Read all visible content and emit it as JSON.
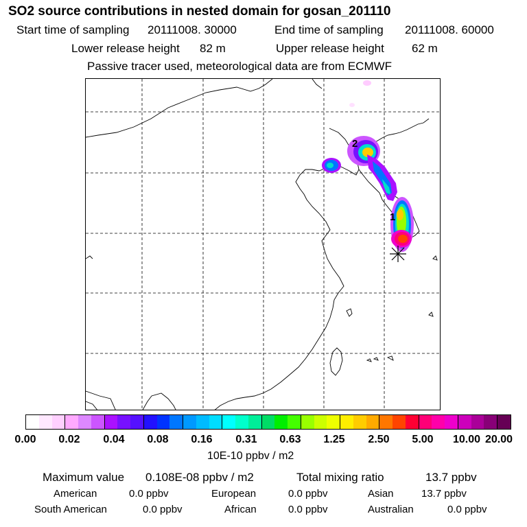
{
  "title": "SO2 source contributions in nested domain for gosan_201110",
  "header": {
    "start_label": "Start time of sampling",
    "start_value": "20111008. 30000",
    "end_label": "End time of sampling",
    "end_value": "20111008. 60000",
    "lower_label": "Lower release height",
    "lower_value": "82 m",
    "upper_label": "Upper release height",
    "upper_value": "62 m",
    "note": "Passive tracer used, meteorological data are from ECMWF"
  },
  "map": {
    "source_labels": [
      "1",
      "2"
    ],
    "receptor": "gosan-marker"
  },
  "colorbar": {
    "colors": [
      "#ffffff",
      "#ffe8ff",
      "#ffd0ff",
      "#ffaaff",
      "#dd88ff",
      "#cc55ff",
      "#aa11ff",
      "#7711ff",
      "#5511ff",
      "#2211ff",
      "#0033ff",
      "#0077ff",
      "#0099ff",
      "#00bbff",
      "#00ddff",
      "#00ffff",
      "#00ffcc",
      "#00ee99",
      "#00dd66",
      "#00ee00",
      "#44ff00",
      "#99ff00",
      "#ccff00",
      "#eeff00",
      "#ffee00",
      "#ffcc00",
      "#ffaa00",
      "#ff7700",
      "#ff4400",
      "#ff0033",
      "#ff0077",
      "#ff00aa",
      "#ee00cc",
      "#cc00bb",
      "#aa0099",
      "#880077",
      "#660055"
    ],
    "ticks": [
      "0.00",
      "0.02",
      "0.04",
      "0.08",
      "0.16",
      "0.31",
      "0.63",
      "1.25",
      "2.50",
      "5.00",
      "10.00",
      "20.00"
    ],
    "unit": "10E-10 ppbv / m2"
  },
  "footer": {
    "max_label": "Maximum value",
    "max_value": "0.108E-08 ppbv / m2",
    "total_label": "Total mixing ratio",
    "total_value": "13.7 ppbv",
    "regions": [
      {
        "name": "American",
        "value": "0.0 ppbv"
      },
      {
        "name": "European",
        "value": "0.0 ppbv"
      },
      {
        "name": "Asian",
        "value": "13.7 ppbv"
      },
      {
        "name": "South American",
        "value": "0.0 ppbv"
      },
      {
        "name": "African",
        "value": "0.0 ppbv"
      },
      {
        "name": "Australian",
        "value": "0.0 ppbv"
      }
    ]
  }
}
